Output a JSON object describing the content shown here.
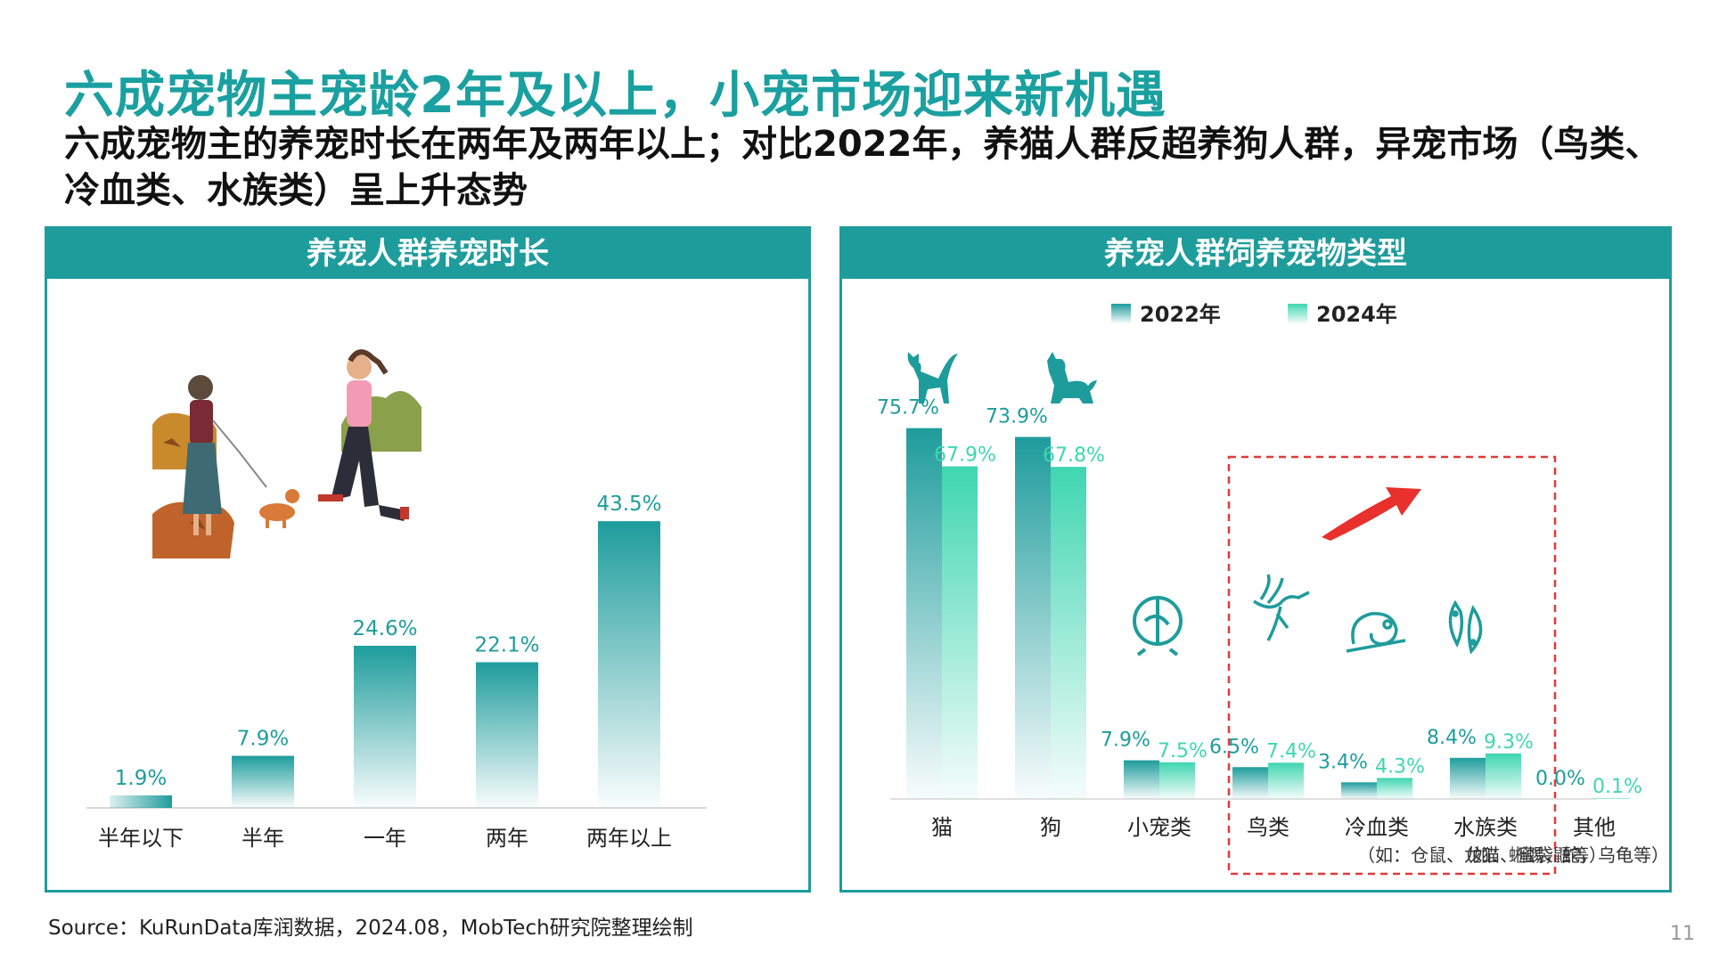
{
  "header": {
    "title": "六成宠物主宠龄2年及以上，小宠市场迎来新机遇",
    "subtitle": "六成宠物主的养宠时长在两年及两年以上；对比2022年，养猫人群反超养狗人群，异宠市场（鸟类、冷血类、水族类）呈上升态势"
  },
  "left_panel": {
    "title": "养宠人群养宠时长"
  },
  "right_panel": {
    "title": "养宠人群饲养宠物类型",
    "note_cold": "（如：仓鼠、龙猫、蜜袋鼯等）",
    "note_aqua": "（如：蜥蜴，蛇，乌龟等）"
  },
  "colors": {
    "teal_dark": "#1e9c9c",
    "mint": "#3fd6b0",
    "arrow_red": "#e8302c",
    "box_red": "#e03a3a"
  },
  "chart_data": [
    {
      "type": "bar",
      "title": "养宠人群养宠时长",
      "categories": [
        "半年以下",
        "半年",
        "一年",
        "两年",
        "两年以上"
      ],
      "values": [
        1.9,
        7.9,
        24.6,
        22.1,
        43.5
      ],
      "value_labels": [
        "1.9%",
        "7.9%",
        "24.6%",
        "22.1%",
        "43.5%"
      ],
      "unit": "%",
      "ylim": [
        0,
        50
      ],
      "grid": false
    },
    {
      "type": "bar",
      "title": "养宠人群饲养宠物类型",
      "categories": [
        "猫",
        "狗",
        "小宠类",
        "鸟类",
        "冷血类",
        "水族类",
        "其他"
      ],
      "series": [
        {
          "name": "2022年",
          "values": [
            75.7,
            73.9,
            7.9,
            6.5,
            3.4,
            8.4,
            0.0
          ],
          "value_labels": [
            "75.7%",
            "73.9%",
            "7.9%",
            "6.5%",
            "3.4%",
            "8.4%",
            "0.0%"
          ]
        },
        {
          "name": "2024年",
          "values": [
            67.9,
            67.8,
            7.5,
            7.4,
            4.3,
            9.3,
            0.1
          ],
          "value_labels": [
            "67.9%",
            "67.8%",
            "7.5%",
            "7.4%",
            "4.3%",
            "9.3%",
            "0.1%"
          ]
        }
      ],
      "unit": "%",
      "ylim": [
        0,
        80
      ],
      "legend": "top-center",
      "grid": false,
      "icons": [
        "cat-icon",
        "dog-icon",
        "hamster-wheel-icon",
        "bird-icon",
        "chameleon-icon",
        "fish-icon",
        ""
      ]
    }
  ],
  "footer": {
    "source": "Source：KuRunData库润数据，2024.08，MobTech研究院整理绘制",
    "page_number": "11"
  }
}
